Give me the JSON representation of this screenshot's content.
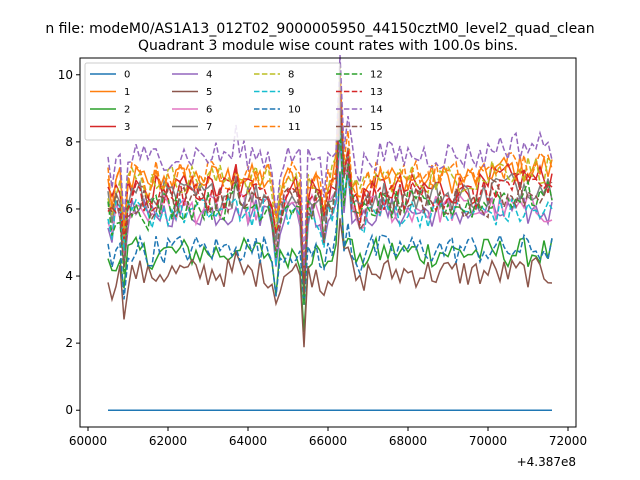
{
  "chart_data": {
    "type": "line",
    "suptitle": "n file: modeM0/AS1A13_012T02_9000005950_44150cztM0_level2_quad_clean",
    "title": "Quadrant 3 module wise count rates with 100.0s bins.",
    "xlabel": "",
    "ylabel": "",
    "x_offset_label": "+4.387e8",
    "xlim": [
      59800,
      72200
    ],
    "ylim": [
      -0.5,
      10.5
    ],
    "xticks": [
      60000,
      62000,
      64000,
      66000,
      68000,
      70000,
      72000
    ],
    "xtick_labels": [
      "60000",
      "62000",
      "64000",
      "66000",
      "68000",
      "70000",
      "72000"
    ],
    "yticks": [
      0,
      2,
      4,
      6,
      8,
      10
    ],
    "ytick_labels": [
      "0",
      "2",
      "4",
      "6",
      "8",
      "10"
    ],
    "x_start": 60500,
    "x_end": 71600,
    "bin": 100,
    "grid": false,
    "legend_position": "top-left",
    "legend_columns": 4,
    "series": [
      {
        "name": "0",
        "color": "#1f77b4",
        "dash": false,
        "base": 0.0
      },
      {
        "name": "1",
        "color": "#ff7f0e",
        "dash": false,
        "base": 6.9
      },
      {
        "name": "2",
        "color": "#2ca02c",
        "dash": false,
        "base": 4.7
      },
      {
        "name": "3",
        "color": "#d62728",
        "dash": false,
        "base": 6.6
      },
      {
        "name": "4",
        "color": "#9467bd",
        "dash": false,
        "base": 5.9
      },
      {
        "name": "5",
        "color": "#8c564b",
        "dash": false,
        "base": 4.1
      },
      {
        "name": "6",
        "color": "#e377c2",
        "dash": false,
        "base": 6.0
      },
      {
        "name": "7",
        "color": "#7f7f7f",
        "dash": false,
        "base": 6.4
      },
      {
        "name": "8",
        "color": "#bcbd22",
        "dash": true,
        "base": 6.9
      },
      {
        "name": "9",
        "color": "#17becf",
        "dash": true,
        "base": 5.9
      },
      {
        "name": "10",
        "color": "#1f77b4",
        "dash": true,
        "base": 4.8
      },
      {
        "name": "11",
        "color": "#ff7f0e",
        "dash": true,
        "base": 7.0
      },
      {
        "name": "12",
        "color": "#2ca02c",
        "dash": true,
        "base": 6.1
      },
      {
        "name": "13",
        "color": "#d62728",
        "dash": true,
        "base": 6.4
      },
      {
        "name": "14",
        "color": "#9467bd",
        "dash": true,
        "base": 7.6
      },
      {
        "name": "15",
        "color": "#8c564b",
        "dash": true,
        "base": 6.2
      }
    ]
  }
}
